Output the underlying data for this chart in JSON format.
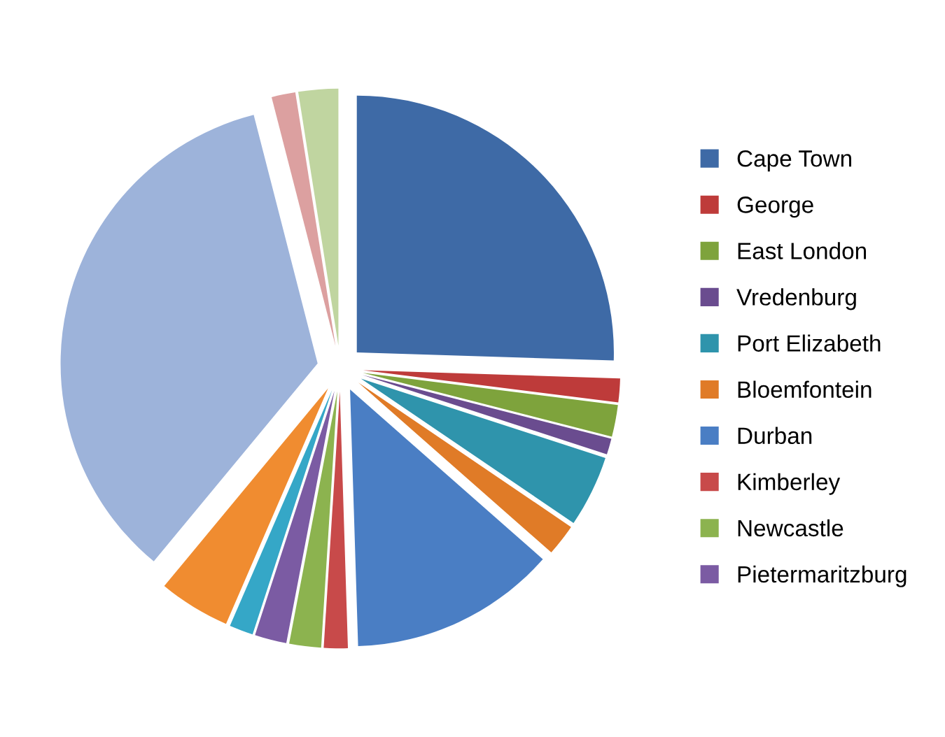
{
  "chart_data": {
    "type": "pie",
    "categories": [
      "Cape Town",
      "George",
      "East London",
      "Vredenburg",
      "Port Elizabeth",
      "Bloemfontein",
      "Durban",
      "Kimberley",
      "Newcastle",
      "Pietermaritzburg",
      null,
      null,
      null,
      null,
      null
    ],
    "values": [
      25.5,
      1.5,
      2,
      1,
      4.5,
      2,
      13,
      1.5,
      2,
      2,
      1.5,
      4.5,
      35,
      1.5,
      2.5
    ],
    "colors": [
      "#3e6aa6",
      "#be3b3a",
      "#7ea33c",
      "#6a4c8f",
      "#2f94ac",
      "#e07b27",
      "#4a7ec4",
      "#c84a4a",
      "#8cb34f",
      "#7b5ba3",
      "#35a7c7",
      "#f08c30",
      "#9db3da",
      "#dca0a0",
      "#c0d5a0"
    ],
    "legend": "right"
  }
}
